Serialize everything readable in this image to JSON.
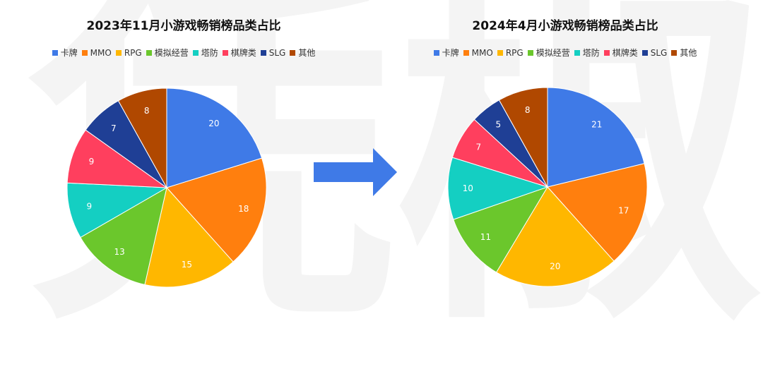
{
  "watermark": {
    "left": "凭",
    "right": "椒"
  },
  "colors": {
    "卡牌": "#3f7ae7",
    "MMO": "#ff7f0e",
    "RPG": "#ffb700",
    "模拟经营": "#6bc72c",
    "塔防": "#14cfc2",
    "棋牌类": "#ff3f5e",
    "SLG": "#1f3f95",
    "其他": "#b04800",
    "arrow": "#3f7ae7"
  },
  "chart_data": [
    {
      "type": "pie",
      "title": "2023年11月小游戏畅销榜品类占比",
      "categories": [
        "卡牌",
        "MMO",
        "RPG",
        "模拟经营",
        "塔防",
        "棋牌类",
        "SLG",
        "其他"
      ],
      "values": [
        20,
        18,
        15,
        13,
        9,
        9,
        7,
        8
      ],
      "legend": "top"
    },
    {
      "type": "pie",
      "title": "2024年4月小游戏畅销榜品类占比",
      "categories": [
        "卡牌",
        "MMO",
        "RPG",
        "模拟经营",
        "塔防",
        "棋牌类",
        "SLG",
        "其他"
      ],
      "values": [
        21,
        17,
        20,
        11,
        10,
        7,
        5,
        8
      ],
      "legend": "top"
    }
  ]
}
